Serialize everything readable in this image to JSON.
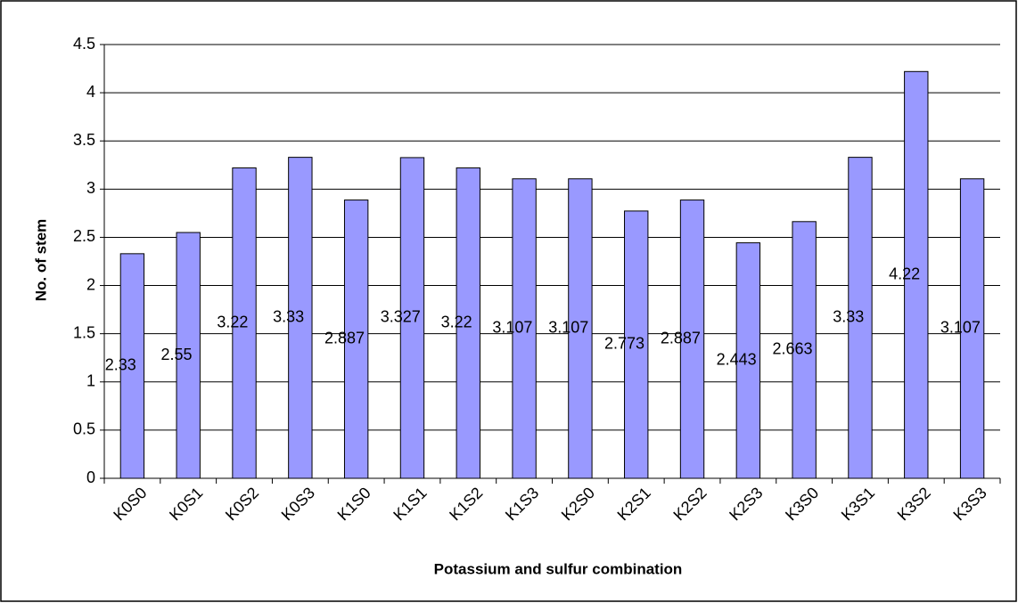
{
  "chart_data": {
    "type": "bar",
    "x_label": "Potassium and sulfur combination",
    "y_label": "No. of stem",
    "categories": [
      "K0S0",
      "K0S1",
      "K0S2",
      "K0S3",
      "K1S0",
      "K1S1",
      "K1S2",
      "K1S3",
      "K2S0",
      "K2S1",
      "K2S2",
      "K2S3",
      "K3S0",
      "K3S1",
      "K3S2",
      "K3S3"
    ],
    "values": [
      2.33,
      2.55,
      3.22,
      3.33,
      2.887,
      3.327,
      3.22,
      3.107,
      3.107,
      2.773,
      2.887,
      2.443,
      2.663,
      3.33,
      4.22,
      3.107
    ],
    "color": "#9999ff",
    "ylim": [
      0,
      4.5
    ],
    "yticks": [
      0,
      0.5,
      1,
      1.5,
      2,
      2.5,
      3,
      3.5,
      4,
      4.5
    ],
    "grid": true
  }
}
